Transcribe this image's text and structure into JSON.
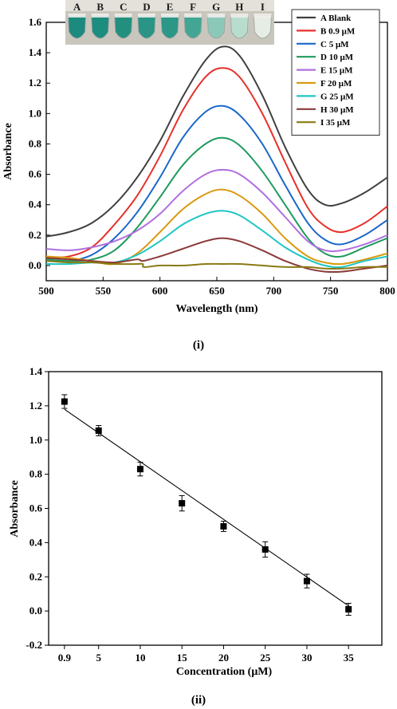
{
  "chart_data": [
    {
      "type": "line",
      "panel_label": "(i)",
      "xlabel": "Wavelength (nm)",
      "ylabel": "Absorbance",
      "xlim": [
        500,
        800
      ],
      "ylim": [
        -0.1,
        1.6
      ],
      "x_ticks": [
        500,
        550,
        600,
        650,
        700,
        750,
        800
      ],
      "y_ticks": [
        0.0,
        0.2,
        0.4,
        0.6,
        0.8,
        1.0,
        1.2,
        1.4,
        1.6
      ],
      "legend_position": "top-right",
      "inset_image": {
        "description_hidden": true,
        "vial_labels": [
          "A",
          "B",
          "C",
          "D",
          "E",
          "F",
          "G",
          "H",
          "I"
        ],
        "vial_colors": [
          "#1c8a7e",
          "#1d8d80",
          "#23907f",
          "#2a9486",
          "#2b9787",
          "#43a694",
          "#8cc8b8",
          "#b8ddcf",
          "#e6ede4"
        ]
      },
      "series": [
        {
          "name": "A Blank",
          "color": "#404040",
          "x": [
            500,
            520,
            540,
            560,
            580,
            600,
            620,
            640,
            655,
            670,
            690,
            710,
            730,
            745,
            760,
            780,
            800
          ],
          "y": [
            0.19,
            0.22,
            0.28,
            0.4,
            0.58,
            0.82,
            1.11,
            1.35,
            1.44,
            1.38,
            1.12,
            0.78,
            0.5,
            0.4,
            0.41,
            0.48,
            0.58
          ]
        },
        {
          "name": "B 0.9 μM",
          "color": "#e8302a",
          "x": [
            500,
            520,
            540,
            560,
            580,
            600,
            620,
            640,
            655,
            670,
            690,
            710,
            730,
            745,
            760,
            780,
            800
          ],
          "y": [
            0.05,
            0.06,
            0.12,
            0.27,
            0.46,
            0.72,
            1.02,
            1.24,
            1.3,
            1.24,
            1.0,
            0.68,
            0.38,
            0.26,
            0.22,
            0.28,
            0.39
          ]
        },
        {
          "name": "C 5 μM",
          "color": "#1a67c9",
          "x": [
            500,
            520,
            540,
            560,
            580,
            600,
            620,
            640,
            655,
            670,
            690,
            710,
            730,
            745,
            760,
            780,
            800
          ],
          "y": [
            0.03,
            0.03,
            0.07,
            0.18,
            0.35,
            0.58,
            0.84,
            1.01,
            1.05,
            0.99,
            0.8,
            0.53,
            0.28,
            0.17,
            0.14,
            0.2,
            0.3
          ]
        },
        {
          "name": "D 10 μM",
          "color": "#1f9a5e",
          "x": [
            500,
            520,
            540,
            560,
            580,
            600,
            620,
            640,
            655,
            670,
            690,
            710,
            730,
            745,
            760,
            780,
            800
          ],
          "y": [
            0.04,
            0.03,
            0.04,
            0.1,
            0.25,
            0.45,
            0.66,
            0.8,
            0.84,
            0.79,
            0.62,
            0.4,
            0.18,
            0.08,
            0.06,
            0.12,
            0.18
          ]
        },
        {
          "name": "E 15 μM",
          "color": "#b06fe0",
          "x": [
            500,
            520,
            540,
            560,
            580,
            600,
            620,
            640,
            655,
            670,
            690,
            710,
            730,
            745,
            760,
            780,
            800
          ],
          "y": [
            0.11,
            0.1,
            0.12,
            0.16,
            0.23,
            0.34,
            0.49,
            0.6,
            0.63,
            0.6,
            0.48,
            0.32,
            0.16,
            0.1,
            0.1,
            0.14,
            0.2
          ]
        },
        {
          "name": "F 20 μM",
          "color": "#d99a11",
          "x": [
            500,
            520,
            540,
            560,
            580,
            600,
            620,
            640,
            655,
            670,
            690,
            710,
            730,
            745,
            760,
            780,
            800
          ],
          "y": [
            0.06,
            0.05,
            0.03,
            0.01,
            0.08,
            0.22,
            0.37,
            0.47,
            0.5,
            0.46,
            0.34,
            0.18,
            0.06,
            0.02,
            0.01,
            0.04,
            0.08
          ]
        },
        {
          "name": "G 25 μM",
          "color": "#1ec6c4",
          "x": [
            500,
            520,
            540,
            560,
            580,
            600,
            620,
            640,
            655,
            670,
            690,
            710,
            730,
            745,
            760,
            780,
            800
          ],
          "y": [
            0.01,
            0.01,
            0.02,
            0.02,
            0.07,
            0.16,
            0.27,
            0.34,
            0.36,
            0.33,
            0.23,
            0.12,
            0.04,
            0.0,
            -0.01,
            0.03,
            0.06
          ]
        },
        {
          "name": "H 30 μM",
          "color": "#8b3a3a",
          "x": [
            500,
            520,
            540,
            560,
            580,
            585,
            600,
            620,
            640,
            655,
            670,
            690,
            710,
            730,
            745,
            760,
            780,
            800
          ],
          "y": [
            0.05,
            0.04,
            0.03,
            0.02,
            0.04,
            0.03,
            0.06,
            0.11,
            0.16,
            0.18,
            0.16,
            0.1,
            0.03,
            -0.02,
            -0.04,
            -0.04,
            -0.02,
            0.0
          ]
        },
        {
          "name": "I 35 μM",
          "color": "#8a7a12",
          "x": [
            500,
            520,
            540,
            560,
            580,
            585,
            586,
            600,
            620,
            640,
            655,
            670,
            690,
            710,
            730,
            745,
            760,
            780,
            800
          ],
          "y": [
            0.03,
            0.02,
            0.02,
            0.01,
            0.01,
            0.01,
            -0.01,
            0.0,
            0.0,
            0.01,
            0.01,
            0.01,
            0.0,
            -0.01,
            -0.01,
            -0.02,
            -0.02,
            -0.01,
            -0.01
          ]
        }
      ]
    },
    {
      "type": "scatter",
      "panel_label": "(ii)",
      "xlabel": "Concentration (μM)",
      "ylabel": "Absorbance",
      "xlim": [
        -1,
        39
      ],
      "ylim": [
        -0.2,
        1.4
      ],
      "x_ticks": [
        0.9,
        5,
        10,
        15,
        20,
        25,
        30,
        35
      ],
      "x_tick_labels": [
        "0.9",
        "5",
        "10",
        "15",
        "20",
        "25",
        "30",
        "35"
      ],
      "y_ticks": [
        -0.2,
        0.0,
        0.2,
        0.4,
        0.6,
        0.8,
        1.0,
        1.2,
        1.4
      ],
      "series": [
        {
          "x": [
            0.9,
            5,
            10,
            15,
            20,
            25,
            30,
            35
          ],
          "y": [
            1.225,
            1.055,
            0.83,
            0.63,
            0.495,
            0.36,
            0.175,
            0.01
          ],
          "yerr": [
            0.04,
            0.03,
            0.04,
            0.045,
            0.03,
            0.045,
            0.04,
            0.035
          ]
        }
      ],
      "fit_line": {
        "x": [
          0.9,
          35
        ],
        "y": [
          1.18,
          0.03
        ]
      }
    }
  ]
}
